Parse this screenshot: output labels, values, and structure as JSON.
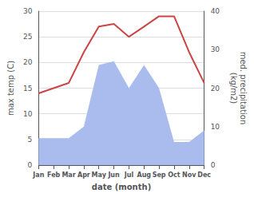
{
  "chart_data": {
    "type": "line",
    "categories": [
      "Jan",
      "Feb",
      "Mar",
      "Apr",
      "May",
      "Jun",
      "Jul",
      "Aug",
      "Sep",
      "Oct",
      "Nov",
      "Dec"
    ],
    "series": [
      {
        "type": "area",
        "axis": "y2",
        "color": "#aabbee",
        "values": [
          7,
          7,
          7,
          10,
          26,
          27,
          20,
          26,
          20,
          6,
          6,
          9
        ]
      },
      {
        "type": "line",
        "color": "#cc4444",
        "values": [
          14,
          15,
          16,
          22,
          27,
          27.5,
          25,
          27,
          29,
          29,
          22,
          16
        ]
      }
    ],
    "xlabel": "date (month)",
    "ylabel": "max temp (C)",
    "y2label": "med. precipitation\n(kg/m2)",
    "ylim": [
      0,
      30
    ],
    "yticks": [
      0,
      5,
      10,
      15,
      20,
      25,
      30
    ],
    "y2lim": [
      0,
      40
    ],
    "y2ticks": [
      0,
      10,
      20,
      30,
      40
    ],
    "grid": true
  }
}
